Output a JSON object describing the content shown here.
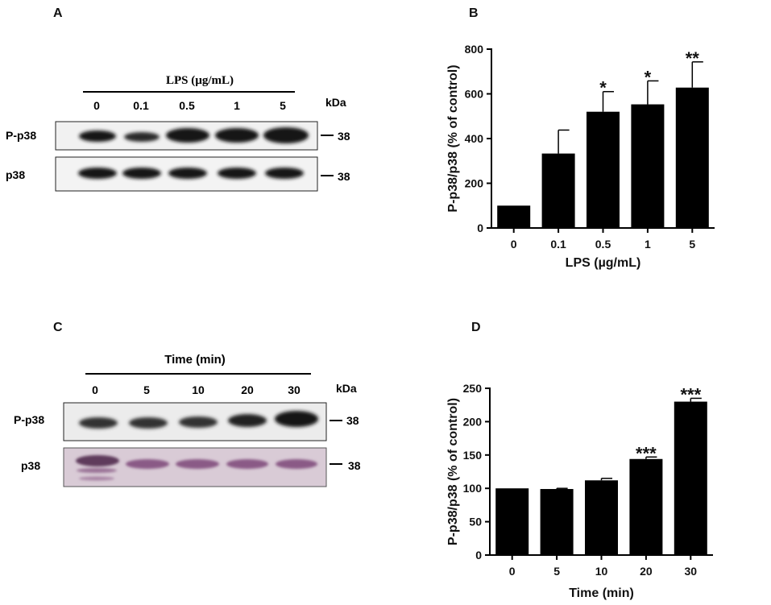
{
  "panels": {
    "a": {
      "letter": "A",
      "treatment_label": "LPS (µg/mL)",
      "lanes": [
        "0",
        "0.1",
        "0.5",
        "1",
        "5"
      ],
      "kda_label": "kDa",
      "rows": [
        {
          "label": "P-p38",
          "marker": "38"
        },
        {
          "label": "p38",
          "marker": "38"
        }
      ]
    },
    "b": {
      "letter": "B"
    },
    "c": {
      "letter": "C",
      "treatment_label": "Time (min)",
      "lanes": [
        "0",
        "5",
        "10",
        "20",
        "30"
      ],
      "kda_label": "kDa",
      "rows": [
        {
          "label": "P-p38",
          "marker": "38"
        },
        {
          "label": "p38",
          "marker": "38"
        }
      ]
    },
    "d": {
      "letter": "D"
    }
  },
  "colors": {
    "bar": "#000000",
    "axis": "#000000",
    "blot_bg_a": "#f1f1f1",
    "blot_bg_c_top": "#ececec",
    "blot_bg_c_bottom": "#d9cbd6",
    "band": "#161616",
    "band_stain": "#8a5a86"
  },
  "chart_data": [
    {
      "panel": "B",
      "type": "bar",
      "categories": [
        "0",
        "0.1",
        "0.5",
        "1",
        "5"
      ],
      "values": [
        100,
        333,
        520,
        553,
        628
      ],
      "errors": [
        0,
        105,
        90,
        105,
        115
      ],
      "significance": [
        "",
        "",
        "*",
        "*",
        "**"
      ],
      "title": "",
      "xlabel": "LPS (µg/mL)",
      "ylabel": "P-p38/p38 (% of control)",
      "ylim": [
        0,
        800
      ],
      "yticks": [
        0,
        200,
        400,
        600,
        800
      ]
    },
    {
      "panel": "D",
      "type": "bar",
      "categories": [
        "0",
        "5",
        "10",
        "20",
        "30"
      ],
      "values": [
        100,
        99,
        112,
        144,
        230
      ],
      "errors": [
        0,
        1,
        3,
        3,
        5
      ],
      "significance": [
        "",
        "",
        "",
        "***",
        "***"
      ],
      "title": "",
      "xlabel": "Time (min)",
      "ylabel": "P-p38/p38 (% of control)",
      "ylim": [
        0,
        250
      ],
      "yticks": [
        0,
        50,
        100,
        150,
        200,
        250
      ]
    }
  ]
}
